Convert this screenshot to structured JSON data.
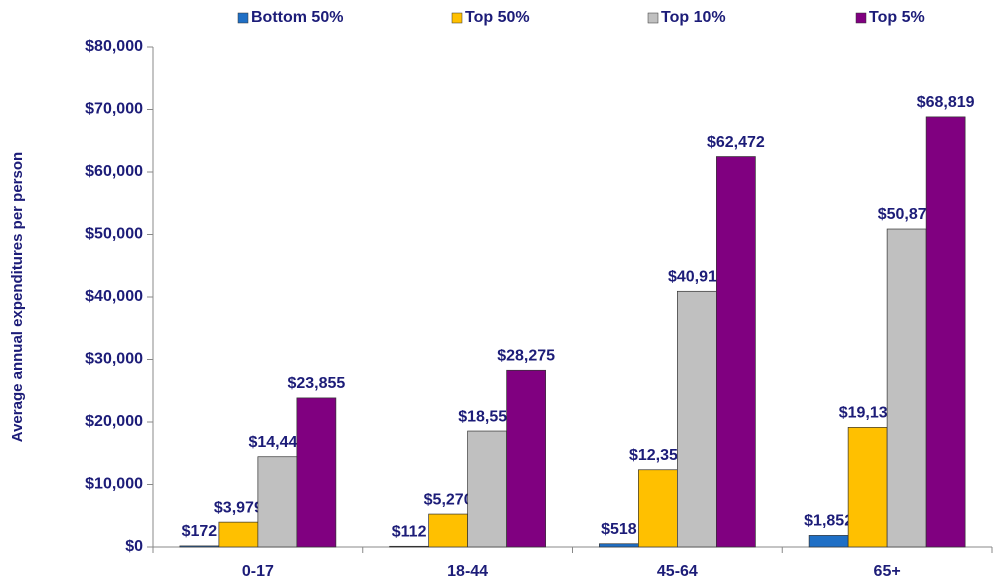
{
  "chart_data": {
    "type": "bar",
    "y_label": "Average annual expenditures per person",
    "categories": [
      "0-17",
      "18-44",
      "45-64",
      "65+"
    ],
    "series": [
      {
        "name": "Bottom 50%",
        "color": "#1f6fc5",
        "values": [
          172,
          112,
          518,
          1852
        ],
        "value_labels": [
          "$172",
          "$112",
          "$518",
          "$1,852"
        ]
      },
      {
        "name": "Top 50%",
        "color": "#ffc000",
        "values": [
          3979,
          5270,
          12359,
          19139
        ],
        "value_labels": [
          "$3,979",
          "$5,270",
          "$12,359",
          "$19,139"
        ]
      },
      {
        "name": "Top 10%",
        "color": "#c0c0c0",
        "values": [
          14442,
          18553,
          40912,
          50876
        ],
        "value_labels": [
          "$14,442",
          "$18,553",
          "$40,912",
          "$50,876"
        ]
      },
      {
        "name": "Top 5%",
        "color": "#800080",
        "values": [
          23855,
          28275,
          62472,
          68819
        ],
        "value_labels": [
          "$23,855",
          "$28,275",
          "$62,472",
          "$68,819"
        ]
      }
    ],
    "ylim": [
      0,
      80000
    ],
    "yticks": [
      {
        "value": 0,
        "label": "$0"
      },
      {
        "value": 10000,
        "label": "$10,000"
      },
      {
        "value": 20000,
        "label": "$20,000"
      },
      {
        "value": 30000,
        "label": "$30,000"
      },
      {
        "value": 40000,
        "label": "$40,000"
      },
      {
        "value": 50000,
        "label": "$50,000"
      },
      {
        "value": 60000,
        "label": "$60,000"
      },
      {
        "value": 70000,
        "label": "$70,000"
      },
      {
        "value": 80000,
        "label": "$80,000"
      }
    ],
    "legend": "top"
  }
}
